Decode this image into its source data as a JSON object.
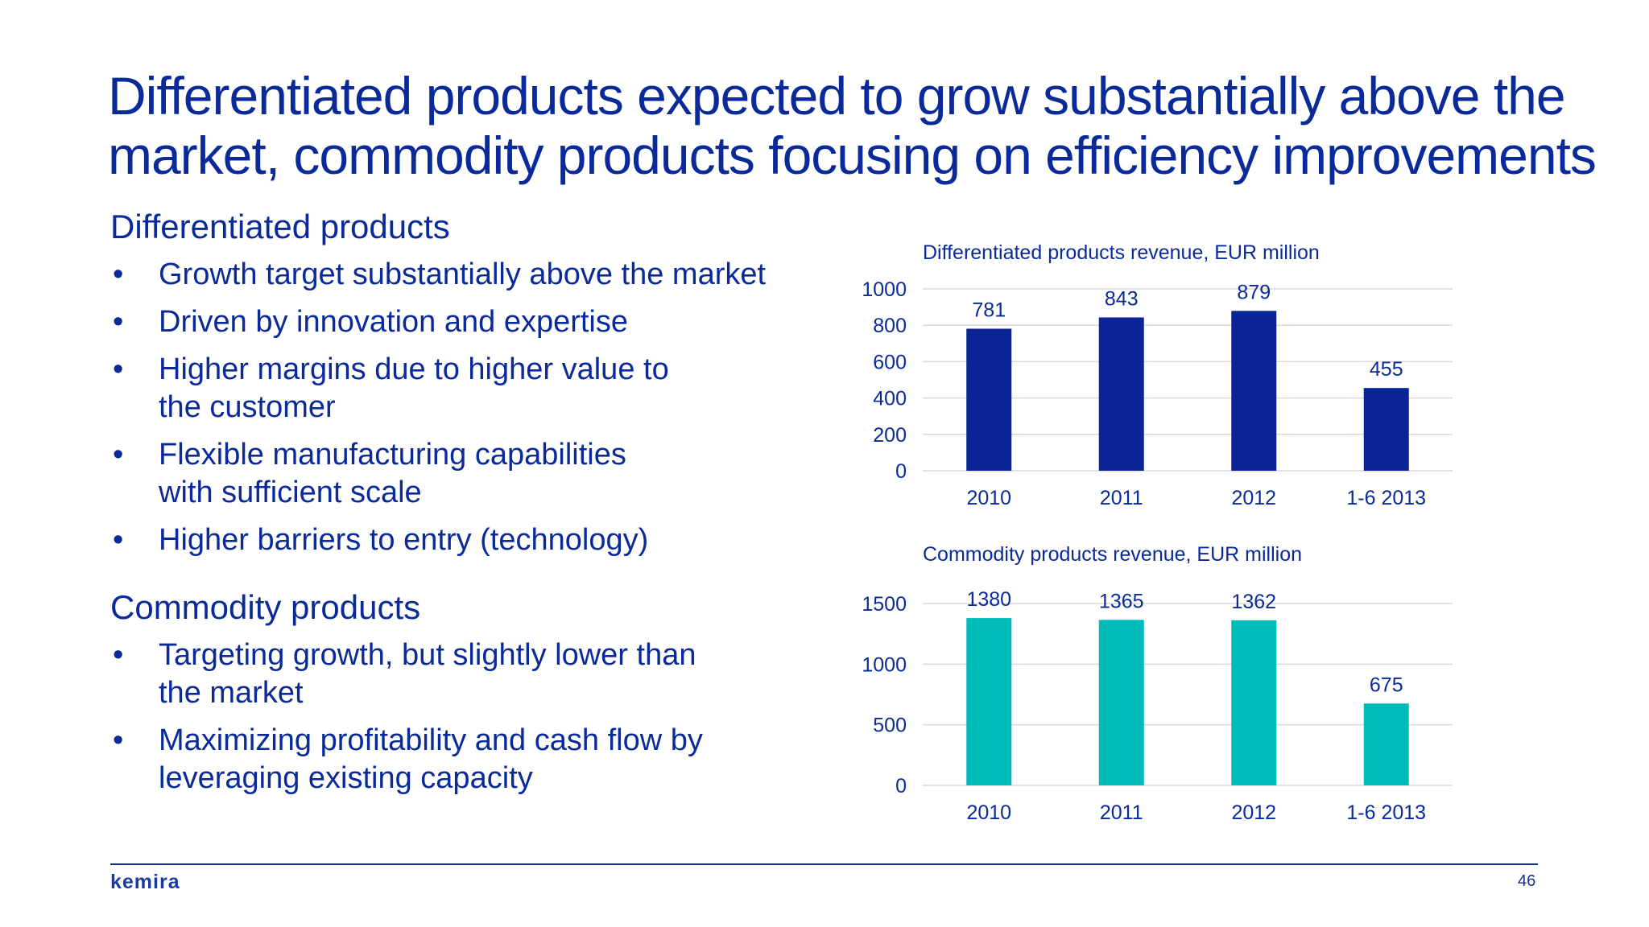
{
  "slide": {
    "title_line1": "Differentiated products expected to grow substantially above the",
    "title_line2": "market, commodity products focusing on efficiency improvements",
    "page_number": "46",
    "logo_text": "kemira"
  },
  "differentiated": {
    "heading": "Differentiated products",
    "bullets": [
      "Growth target substantially above the market",
      "Driven by innovation and expertise",
      "Higher margins due to higher value to the customer",
      "Flexible manufacturing capabilities with sufficient scale",
      "Higher barriers to entry (technology)"
    ]
  },
  "commodity": {
    "heading": "Commodity products",
    "bullets": [
      "Targeting growth, but slightly lower than the market",
      "Maximizing profitability and cash flow by leveraging existing capacity"
    ]
  },
  "bullet_symbol": "•",
  "chart_data": [
    {
      "type": "bar",
      "title": "Differentiated products revenue, EUR million",
      "categories": [
        "2010",
        "2011",
        "2012",
        "1-6 2013"
      ],
      "values": [
        781,
        843,
        879,
        455
      ],
      "ylim": [
        0,
        1000
      ],
      "yticks": [
        0,
        200,
        400,
        600,
        800,
        1000
      ],
      "grid": true,
      "color": "#0a2496"
    },
    {
      "type": "bar",
      "title": "Commodity products revenue, EUR million",
      "categories": [
        "2010",
        "2011",
        "2012",
        "1-6 2013"
      ],
      "values": [
        1380,
        1365,
        1362,
        675
      ],
      "ylim": [
        0,
        1500
      ],
      "yticks": [
        0,
        500,
        1000,
        1500
      ],
      "grid": true,
      "color": "#00bcb8"
    }
  ]
}
